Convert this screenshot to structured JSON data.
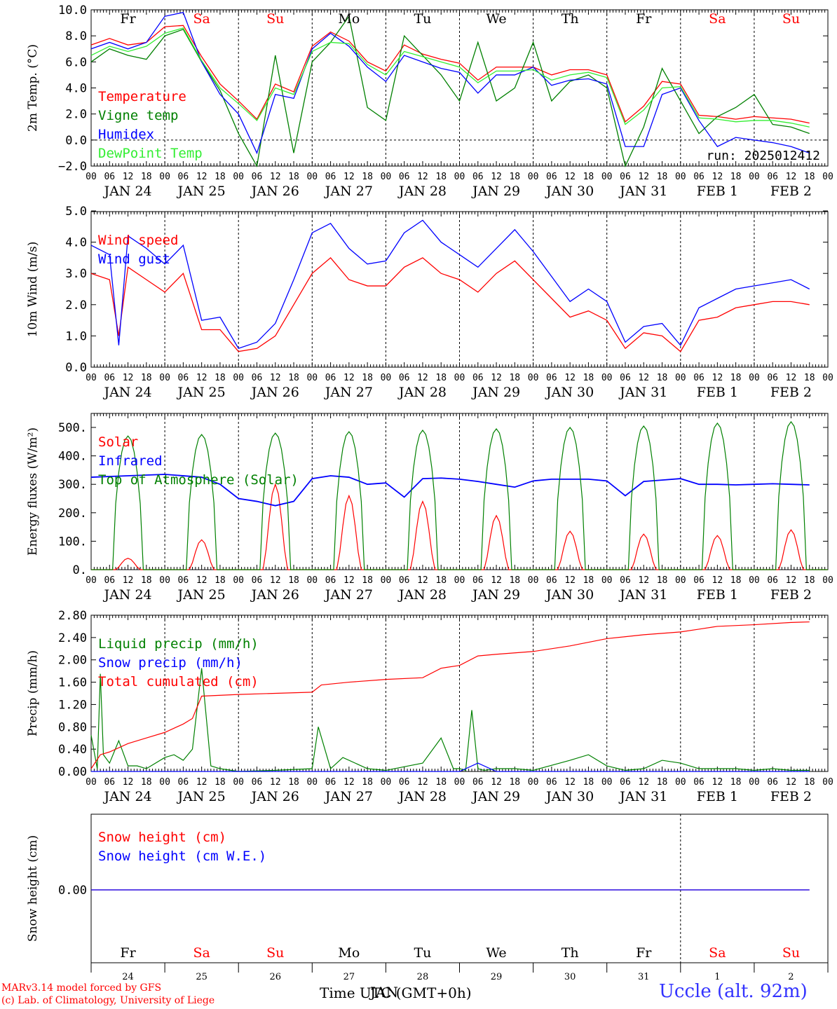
{
  "station_title": "Uccle (alt. 92m)",
  "footer": {
    "model": "MARv3.14 model forced by GFS",
    "credit": "(c) Lab. of Climatology, University of Liege"
  },
  "time_label": "Time UTC (GMT+0h)",
  "time_label_overlay": "JAN",
  "colors": {
    "red": "#ff0000",
    "green": "#008000",
    "blue": "#0000ff",
    "lightgreen": "#33ee33",
    "saturday_sunday": "#ff0000"
  },
  "days": {
    "weekday": [
      "Fr",
      "Sa",
      "Su",
      "Mo",
      "Tu",
      "We",
      "Th",
      "Fr",
      "Sa",
      "Su"
    ],
    "weekend": [
      false,
      true,
      true,
      false,
      false,
      false,
      false,
      false,
      true,
      true
    ],
    "date_labels": [
      "JAN 24",
      "JAN 25",
      "JAN 26",
      "JAN 27",
      "JAN 28",
      "JAN 29",
      "JAN 30",
      "JAN 31",
      "FEB  1",
      "FEB  2"
    ],
    "day_numbers": [
      "24",
      "25",
      "26",
      "27",
      "28",
      "29",
      "30",
      "31",
      "1",
      "2"
    ],
    "hour_ticks": [
      "00",
      "06",
      "12",
      "18"
    ],
    "final_hour": "00"
  },
  "chart_data": [
    {
      "type": "line",
      "ylabel": "2m Temp. (°C)",
      "ylim": [
        -2.0,
        10.0
      ],
      "yticks": [
        "−2.0",
        "0.0",
        "2.0",
        "4.0",
        "6.0",
        "8.0",
        "10.0"
      ],
      "annotation": "run: 2025012412",
      "x_unit": "hours since JAN 24 00 UTC",
      "series": [
        {
          "name": "Temperature",
          "color": "red",
          "x": [
            0,
            6,
            12,
            18,
            24,
            30,
            36,
            42,
            48,
            54,
            60,
            66,
            72,
            78,
            84,
            90,
            96,
            102,
            108,
            114,
            120,
            126,
            132,
            138,
            144,
            150,
            156,
            162,
            168,
            174,
            180,
            186,
            192,
            198,
            204,
            210,
            216,
            222,
            228,
            234
          ],
          "values": [
            7.3,
            7.8,
            7.3,
            7.5,
            8.7,
            8.8,
            6.4,
            4.3,
            3.0,
            1.6,
            4.3,
            3.7,
            7.2,
            8.3,
            7.6,
            6.0,
            5.3,
            7.3,
            6.6,
            6.2,
            5.9,
            4.6,
            5.6,
            5.6,
            5.6,
            5.0,
            5.4,
            5.4,
            5.0,
            1.4,
            2.6,
            4.5,
            4.3,
            1.9,
            1.8,
            1.6,
            1.8,
            1.7,
            1.6,
            1.3
          ]
        },
        {
          "name": "Vigne temp",
          "color": "green",
          "x": [
            0,
            6,
            12,
            18,
            24,
            30,
            36,
            42,
            48,
            54,
            60,
            66,
            72,
            78,
            84,
            90,
            96,
            102,
            108,
            114,
            120,
            126,
            132,
            138,
            144,
            150,
            156,
            162,
            168,
            174,
            180,
            186,
            192,
            198,
            204,
            210,
            216,
            222,
            228,
            234
          ],
          "values": [
            6.0,
            7.0,
            6.5,
            6.2,
            8.0,
            8.5,
            6.0,
            3.8,
            0.5,
            -2.0,
            6.5,
            -1.0,
            6.0,
            7.5,
            9.5,
            2.5,
            1.5,
            8.0,
            6.5,
            5.0,
            3.0,
            7.5,
            3.0,
            4.0,
            7.5,
            3.0,
            4.5,
            5.0,
            4.0,
            -2.0,
            1.0,
            5.5,
            3.0,
            0.5,
            1.8,
            2.5,
            3.5,
            1.2,
            1.0,
            0.5
          ]
        },
        {
          "name": "Humidex",
          "color": "blue",
          "x": [
            0,
            6,
            12,
            18,
            24,
            30,
            36,
            42,
            48,
            54,
            60,
            66,
            72,
            78,
            84,
            90,
            96,
            102,
            108,
            114,
            120,
            126,
            132,
            138,
            144,
            150,
            156,
            162,
            168,
            174,
            180,
            186,
            192,
            198,
            204,
            210,
            216,
            222,
            228,
            234
          ],
          "values": [
            7.0,
            7.5,
            7.0,
            7.5,
            9.5,
            9.8,
            6.0,
            3.5,
            2.0,
            -1.0,
            3.5,
            3.2,
            7.0,
            8.2,
            7.2,
            5.6,
            4.5,
            6.5,
            6.0,
            5.5,
            5.2,
            3.6,
            5.0,
            5.0,
            5.6,
            4.2,
            4.6,
            4.7,
            4.3,
            -0.5,
            -0.5,
            3.5,
            4.0,
            1.5,
            -0.5,
            0.2,
            0.0,
            -0.2,
            -0.5,
            -1.0
          ]
        },
        {
          "name": "DewPoint Temp",
          "color": "lightgreen",
          "x": [
            0,
            6,
            12,
            18,
            24,
            30,
            36,
            42,
            48,
            54,
            60,
            66,
            72,
            78,
            84,
            90,
            96,
            102,
            108,
            114,
            120,
            126,
            132,
            138,
            144,
            150,
            156,
            162,
            168,
            174,
            180,
            186,
            192,
            198,
            204,
            210,
            216,
            222,
            228,
            234
          ],
          "values": [
            6.5,
            7.2,
            6.8,
            7.2,
            8.2,
            8.6,
            6.1,
            4.0,
            2.8,
            1.5,
            4.0,
            3.5,
            6.8,
            7.5,
            7.4,
            5.8,
            5.0,
            6.8,
            6.4,
            6.0,
            5.6,
            4.4,
            5.3,
            5.3,
            5.4,
            4.6,
            5.0,
            5.2,
            4.8,
            1.2,
            2.3,
            4.0,
            4.1,
            1.7,
            1.6,
            1.4,
            1.5,
            1.5,
            1.3,
            1.0
          ]
        }
      ]
    },
    {
      "type": "line",
      "ylabel": "10m Wind (m/s)",
      "ylim": [
        0.0,
        5.0
      ],
      "yticks": [
        "0.0",
        "1.0",
        "2.0",
        "3.0",
        "4.0",
        "5.0"
      ],
      "x_unit": "hours since JAN 24 00 UTC",
      "series": [
        {
          "name": "Wind speed",
          "color": "red",
          "x": [
            0,
            6,
            9,
            12,
            18,
            24,
            30,
            36,
            42,
            48,
            54,
            60,
            66,
            72,
            78,
            84,
            90,
            96,
            102,
            108,
            114,
            120,
            126,
            132,
            138,
            144,
            150,
            156,
            162,
            168,
            174,
            180,
            186,
            192,
            198,
            204,
            210,
            216,
            222,
            228,
            234
          ],
          "values": [
            3.0,
            2.8,
            1.0,
            3.2,
            2.8,
            2.4,
            3.0,
            1.2,
            1.2,
            0.5,
            0.6,
            1.0,
            2.0,
            3.0,
            3.5,
            2.8,
            2.6,
            2.6,
            3.2,
            3.5,
            3.0,
            2.8,
            2.4,
            3.0,
            3.4,
            2.8,
            2.2,
            1.6,
            1.8,
            1.5,
            0.6,
            1.1,
            1.0,
            0.5,
            1.5,
            1.6,
            1.9,
            2.0,
            2.1,
            2.1,
            2.0
          ]
        },
        {
          "name": "Wind gust",
          "color": "blue",
          "x": [
            0,
            6,
            9,
            12,
            18,
            24,
            30,
            36,
            42,
            48,
            54,
            60,
            66,
            72,
            78,
            84,
            90,
            96,
            102,
            108,
            114,
            120,
            126,
            132,
            138,
            144,
            150,
            156,
            162,
            168,
            174,
            180,
            186,
            192,
            198,
            204,
            210,
            216,
            222,
            228,
            234
          ],
          "values": [
            3.9,
            3.6,
            0.7,
            4.2,
            3.8,
            3.3,
            3.9,
            1.5,
            1.6,
            0.6,
            0.8,
            1.4,
            2.8,
            4.3,
            4.6,
            3.8,
            3.3,
            3.4,
            4.3,
            4.7,
            4.0,
            3.6,
            3.2,
            3.8,
            4.4,
            3.7,
            2.9,
            2.1,
            2.5,
            2.1,
            0.8,
            1.3,
            1.4,
            0.7,
            1.9,
            2.2,
            2.5,
            2.6,
            2.7,
            2.8,
            2.5
          ]
        }
      ]
    },
    {
      "type": "line",
      "ylabel": "Energy fluxes (W/m²)",
      "ylim": [
        0,
        550
      ],
      "yticks": [
        "0.",
        "100.",
        "200.",
        "300.",
        "400.",
        "500."
      ],
      "x_unit": "hours since JAN 24 00 UTC",
      "series": [
        {
          "name": "Solar",
          "color": "red",
          "peaks": [
            40,
            105,
            300,
            260,
            240,
            190,
            135,
            125,
            120,
            140
          ]
        },
        {
          "name": "Infrared",
          "color": "blue",
          "x": [
            0,
            12,
            24,
            36,
            42,
            48,
            54,
            60,
            66,
            72,
            78,
            84,
            90,
            96,
            102,
            108,
            114,
            120,
            126,
            132,
            138,
            144,
            150,
            156,
            162,
            168,
            174,
            180,
            186,
            192,
            198,
            204,
            210,
            216,
            222,
            228,
            234
          ],
          "values": [
            325,
            330,
            335,
            325,
            300,
            250,
            240,
            225,
            240,
            320,
            330,
            325,
            300,
            305,
            255,
            320,
            322,
            318,
            310,
            300,
            290,
            312,
            318,
            318,
            318,
            312,
            260,
            310,
            315,
            320,
            300,
            300,
            298,
            300,
            302,
            300,
            298
          ]
        },
        {
          "name": "Top of Atmosphere (Solar)",
          "color": "green",
          "peaks": [
            470,
            475,
            480,
            485,
            490,
            495,
            500,
            505,
            515,
            520
          ]
        }
      ]
    },
    {
      "type": "line",
      "ylabel": "Precip (mm/h)",
      "ylim": [
        0.0,
        2.8
      ],
      "yticks": [
        "0.00",
        "0.40",
        "0.80",
        "1.20",
        "1.60",
        "2.00",
        "2.40",
        "2.80"
      ],
      "x_unit": "hours since JAN 24 00 UTC",
      "series": [
        {
          "name": "Liquid precip (mm/h)",
          "color": "green",
          "x": [
            0,
            2,
            3,
            4,
            6,
            9,
            12,
            15,
            18,
            24,
            27,
            30,
            33,
            36,
            39,
            42,
            48,
            60,
            72,
            74,
            78,
            82,
            90,
            96,
            108,
            114,
            118,
            120,
            122,
            124,
            126,
            128,
            132,
            138,
            144,
            156,
            162,
            168,
            174,
            180,
            186,
            192,
            198,
            204,
            210,
            216,
            222,
            228,
            234
          ],
          "values": [
            0.65,
            0.05,
            1.75,
            0.3,
            0.15,
            0.55,
            0.1,
            0.1,
            0.05,
            0.25,
            0.3,
            0.2,
            0.4,
            1.85,
            0.1,
            0.05,
            0.0,
            0.02,
            0.05,
            0.8,
            0.05,
            0.25,
            0.05,
            0.02,
            0.15,
            0.6,
            0.05,
            0.05,
            0.02,
            1.1,
            0.05,
            0.02,
            0.05,
            0.05,
            0.02,
            0.2,
            0.3,
            0.1,
            0.02,
            0.05,
            0.2,
            0.15,
            0.05,
            0.05,
            0.05,
            0.02,
            0.05,
            0.02,
            0.02
          ]
        },
        {
          "name": "Snow precip (mm/h)",
          "color": "blue",
          "x": [
            0,
            48,
            96,
            120,
            126,
            132,
            168,
            234
          ],
          "values": [
            0.0,
            0.0,
            0.0,
            0.0,
            0.15,
            0.0,
            0.0,
            0.0
          ]
        },
        {
          "name": "Total cumulated (cm)",
          "color": "red",
          "x": [
            0,
            3,
            6,
            12,
            18,
            24,
            30,
            33,
            36,
            48,
            60,
            72,
            75,
            84,
            96,
            108,
            114,
            120,
            126,
            132,
            144,
            156,
            168,
            180,
            192,
            198,
            204,
            216,
            228,
            234
          ],
          "values": [
            0.05,
            0.3,
            0.35,
            0.5,
            0.6,
            0.7,
            0.85,
            0.95,
            1.35,
            1.38,
            1.4,
            1.42,
            1.55,
            1.6,
            1.65,
            1.68,
            1.85,
            1.9,
            2.07,
            2.1,
            2.15,
            2.25,
            2.38,
            2.45,
            2.5,
            2.55,
            2.6,
            2.63,
            2.67,
            2.68
          ]
        }
      ]
    },
    {
      "type": "line",
      "ylabel": "Snow height (cm)",
      "yticks": [
        "0.00"
      ],
      "series": [
        {
          "name": "Snow height (cm)",
          "color": "red",
          "x": [
            0,
            234
          ],
          "values": [
            0.0,
            0.0
          ]
        },
        {
          "name": "Snow height (cm W.E.)",
          "color": "blue",
          "x": [
            0,
            234
          ],
          "values": [
            0.0,
            0.0
          ]
        }
      ]
    }
  ]
}
